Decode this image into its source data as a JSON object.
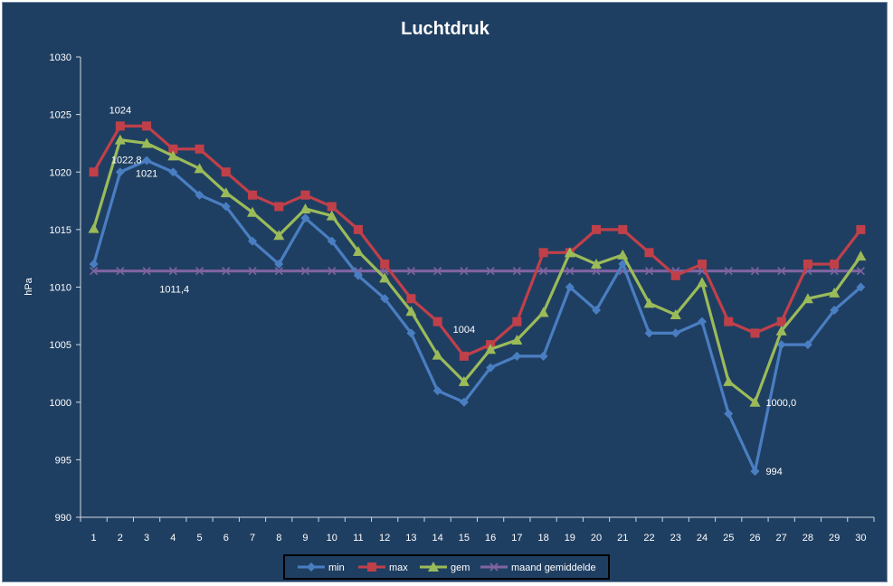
{
  "chart_data": {
    "type": "line",
    "title": "Luchtdruk",
    "xlabel": "",
    "ylabel": "hPa",
    "ylim": [
      990,
      1030
    ],
    "yticks": [
      990,
      995,
      1000,
      1005,
      1010,
      1015,
      1020,
      1025,
      1030
    ],
    "grid": false,
    "legend_position": "bottom",
    "categories": [
      "1",
      "2",
      "3",
      "4",
      "5",
      "6",
      "7",
      "8",
      "9",
      "10",
      "11",
      "12",
      "13",
      "14",
      "15",
      "16",
      "17",
      "18",
      "19",
      "20",
      "21",
      "22",
      "23",
      "24",
      "25",
      "26",
      "27",
      "28",
      "29",
      "30"
    ],
    "series": [
      {
        "name": "min",
        "color": "#4a7ec2",
        "marker": "diamond",
        "values": [
          1012,
          1020,
          1021,
          1020,
          1018,
          1017,
          1014,
          1012,
          1016,
          1014,
          1011,
          1009,
          1006,
          1001,
          1000,
          1003,
          1004,
          1004,
          1010,
          1008,
          1012,
          1006,
          1006,
          1007,
          999,
          994,
          1005,
          1005,
          1008,
          1010
        ]
      },
      {
        "name": "max",
        "color": "#c0404a",
        "marker": "square",
        "values": [
          1020,
          1024,
          1024,
          1022,
          1022,
          1020,
          1018,
          1017,
          1018,
          1017,
          1015,
          1012,
          1009,
          1007,
          1004,
          1005,
          1007,
          1013,
          1013,
          1015,
          1015,
          1013,
          1011,
          1012,
          1007,
          1006,
          1007,
          1012,
          1012,
          1015
        ]
      },
      {
        "name": "gem",
        "color": "#9bbb59",
        "marker": "triangle",
        "values": [
          1015.1,
          1022.8,
          1022.5,
          1021.4,
          1020.3,
          1018.2,
          1016.5,
          1014.5,
          1016.8,
          1016.2,
          1013.1,
          1010.8,
          1007.9,
          1004.1,
          1001.8,
          1004.6,
          1005.4,
          1007.8,
          1013.0,
          1012.0,
          1012.8,
          1008.6,
          1007.6,
          1010.4,
          1001.8,
          1000.0,
          1006.2,
          1009.0,
          1009.5,
          1012.7
        ]
      },
      {
        "name": "maand gemiddelde",
        "color": "#8064a2",
        "marker": "x",
        "values": [
          1011.4,
          1011.4,
          1011.4,
          1011.4,
          1011.4,
          1011.4,
          1011.4,
          1011.4,
          1011.4,
          1011.4,
          1011.4,
          1011.4,
          1011.4,
          1011.4,
          1011.4,
          1011.4,
          1011.4,
          1011.4,
          1011.4,
          1011.4,
          1011.4,
          1011.4,
          1011.4,
          1011.4,
          1011.4,
          1011.4,
          1011.4,
          1011.4,
          1011.4,
          1011.4
        ]
      }
    ],
    "annotations": [
      {
        "text": "1024",
        "series": "max",
        "x": "2"
      },
      {
        "text": "1022,8",
        "series": "gem",
        "x": "2"
      },
      {
        "text": "1021",
        "series": "min",
        "x": "3"
      },
      {
        "text": "1011,4",
        "series": "maand gemiddelde",
        "x": "4"
      },
      {
        "text": "1004",
        "series": "max",
        "x": "15"
      },
      {
        "text": "1000,0",
        "series": "gem",
        "x": "26"
      },
      {
        "text": "994",
        "series": "min",
        "x": "26"
      }
    ]
  }
}
